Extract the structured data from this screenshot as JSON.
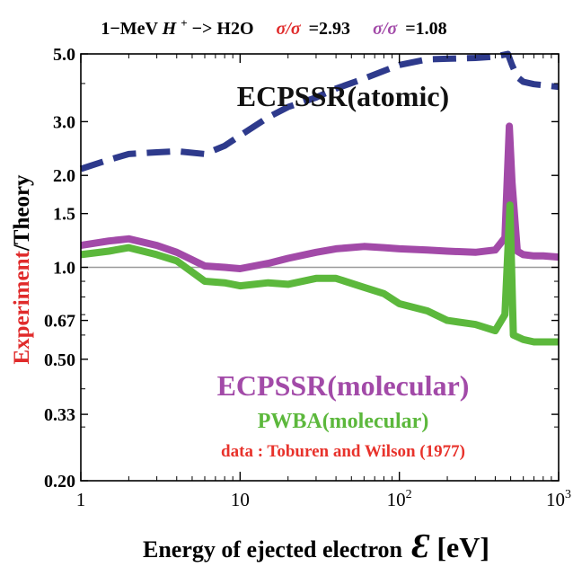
{
  "chart_data": {
    "type": "line",
    "title": {
      "prefix": "1−MeV ",
      "ion": "H",
      "ion_sup": "+",
      "arrow_target": "−> H2O",
      "ratio1_label": "σ/σ",
      "ratio1_value": "=2.93",
      "ratio2_label": "σ/σ",
      "ratio2_value": "=1.08"
    },
    "ylabel": {
      "part1": "Experiment",
      "part2": "/Theory"
    },
    "xlabel": {
      "text": "Energy of ejected electron",
      "symbol": "Ɛ",
      "unit": "[eV]"
    },
    "x_scale": "log",
    "y_scale": "log",
    "xlim": [
      1,
      1000
    ],
    "ylim": [
      0.2,
      5.0
    ],
    "x_ticks": [
      {
        "value": 1,
        "label": "1",
        "sup": ""
      },
      {
        "value": 10,
        "label": "10",
        "sup": ""
      },
      {
        "value": 100,
        "label": "10",
        "sup": "2"
      },
      {
        "value": 1000,
        "label": "10",
        "sup": "3"
      }
    ],
    "y_ticks": [
      {
        "value": 0.2,
        "label": "0.20"
      },
      {
        "value": 0.33,
        "label": "0.33"
      },
      {
        "value": 0.5,
        "label": "0.50"
      },
      {
        "value": 0.67,
        "label": "0.67"
      },
      {
        "value": 1.0,
        "label": "1.0"
      },
      {
        "value": 1.5,
        "label": "1.5"
      },
      {
        "value": 2.0,
        "label": "2.0"
      },
      {
        "value": 3.0,
        "label": "3.0"
      },
      {
        "value": 5.0,
        "label": "5.0"
      }
    ],
    "reference_line": 1.0,
    "series": [
      {
        "name": "ECPSSR(atomic)",
        "color": "#2e3a8c",
        "dash": true,
        "points": [
          [
            1,
            2.1
          ],
          [
            1.5,
            2.25
          ],
          [
            2,
            2.35
          ],
          [
            3,
            2.38
          ],
          [
            4,
            2.4
          ],
          [
            6,
            2.35
          ],
          [
            8,
            2.5
          ],
          [
            10,
            2.7
          ],
          [
            15,
            3.1
          ],
          [
            20,
            3.35
          ],
          [
            30,
            3.6
          ],
          [
            40,
            3.85
          ],
          [
            60,
            4.15
          ],
          [
            80,
            4.4
          ],
          [
            100,
            4.6
          ],
          [
            150,
            4.8
          ],
          [
            200,
            4.82
          ],
          [
            300,
            4.85
          ],
          [
            400,
            4.9
          ],
          [
            480,
            5.0
          ],
          [
            510,
            4.6
          ],
          [
            550,
            4.2
          ],
          [
            600,
            4.05
          ],
          [
            700,
            3.98
          ],
          [
            800,
            3.95
          ],
          [
            1000,
            3.9
          ]
        ]
      },
      {
        "name": "ECPSSR(molecular)",
        "color": "#a24aa8",
        "dash": false,
        "points": [
          [
            1,
            1.18
          ],
          [
            1.5,
            1.22
          ],
          [
            2,
            1.24
          ],
          [
            3,
            1.18
          ],
          [
            4,
            1.12
          ],
          [
            6,
            1.01
          ],
          [
            8,
            1.0
          ],
          [
            10,
            0.99
          ],
          [
            15,
            1.03
          ],
          [
            20,
            1.07
          ],
          [
            30,
            1.12
          ],
          [
            40,
            1.15
          ],
          [
            60,
            1.17
          ],
          [
            80,
            1.16
          ],
          [
            100,
            1.15
          ],
          [
            150,
            1.14
          ],
          [
            200,
            1.13
          ],
          [
            300,
            1.12
          ],
          [
            400,
            1.14
          ],
          [
            460,
            1.25
          ],
          [
            490,
            2.9
          ],
          [
            510,
            1.9
          ],
          [
            550,
            1.13
          ],
          [
            600,
            1.1
          ],
          [
            700,
            1.09
          ],
          [
            800,
            1.09
          ],
          [
            1000,
            1.08
          ]
        ]
      },
      {
        "name": "PWBA(molecular)",
        "color": "#5cb83c",
        "dash": false,
        "points": [
          [
            1,
            1.1
          ],
          [
            1.5,
            1.13
          ],
          [
            2,
            1.16
          ],
          [
            3,
            1.1
          ],
          [
            4,
            1.05
          ],
          [
            6,
            0.9
          ],
          [
            8,
            0.89
          ],
          [
            10,
            0.87
          ],
          [
            15,
            0.89
          ],
          [
            20,
            0.88
          ],
          [
            30,
            0.92
          ],
          [
            40,
            0.92
          ],
          [
            60,
            0.86
          ],
          [
            80,
            0.82
          ],
          [
            100,
            0.76
          ],
          [
            150,
            0.72
          ],
          [
            200,
            0.67
          ],
          [
            300,
            0.65
          ],
          [
            400,
            0.62
          ],
          [
            460,
            0.7
          ],
          [
            495,
            1.6
          ],
          [
            520,
            0.6
          ],
          [
            600,
            0.58
          ],
          [
            700,
            0.57
          ],
          [
            800,
            0.57
          ],
          [
            1000,
            0.57
          ]
        ]
      }
    ],
    "annotations": [
      {
        "text": "ECPSSR(atomic)",
        "color": "#111111"
      },
      {
        "text": "ECPSSR(molecular)",
        "color": "#a24aa8"
      },
      {
        "text": "PWBA(molecular)",
        "color": "#5cb83c"
      },
      {
        "text": "data : Toburen and Wilson (1977)",
        "color": "#e8322b"
      }
    ],
    "colors": {
      "axis": "#000000",
      "ref_line": "#9a9a9a",
      "red": "#e02b2b",
      "purple": "#a24aa8",
      "grid": false
    }
  }
}
